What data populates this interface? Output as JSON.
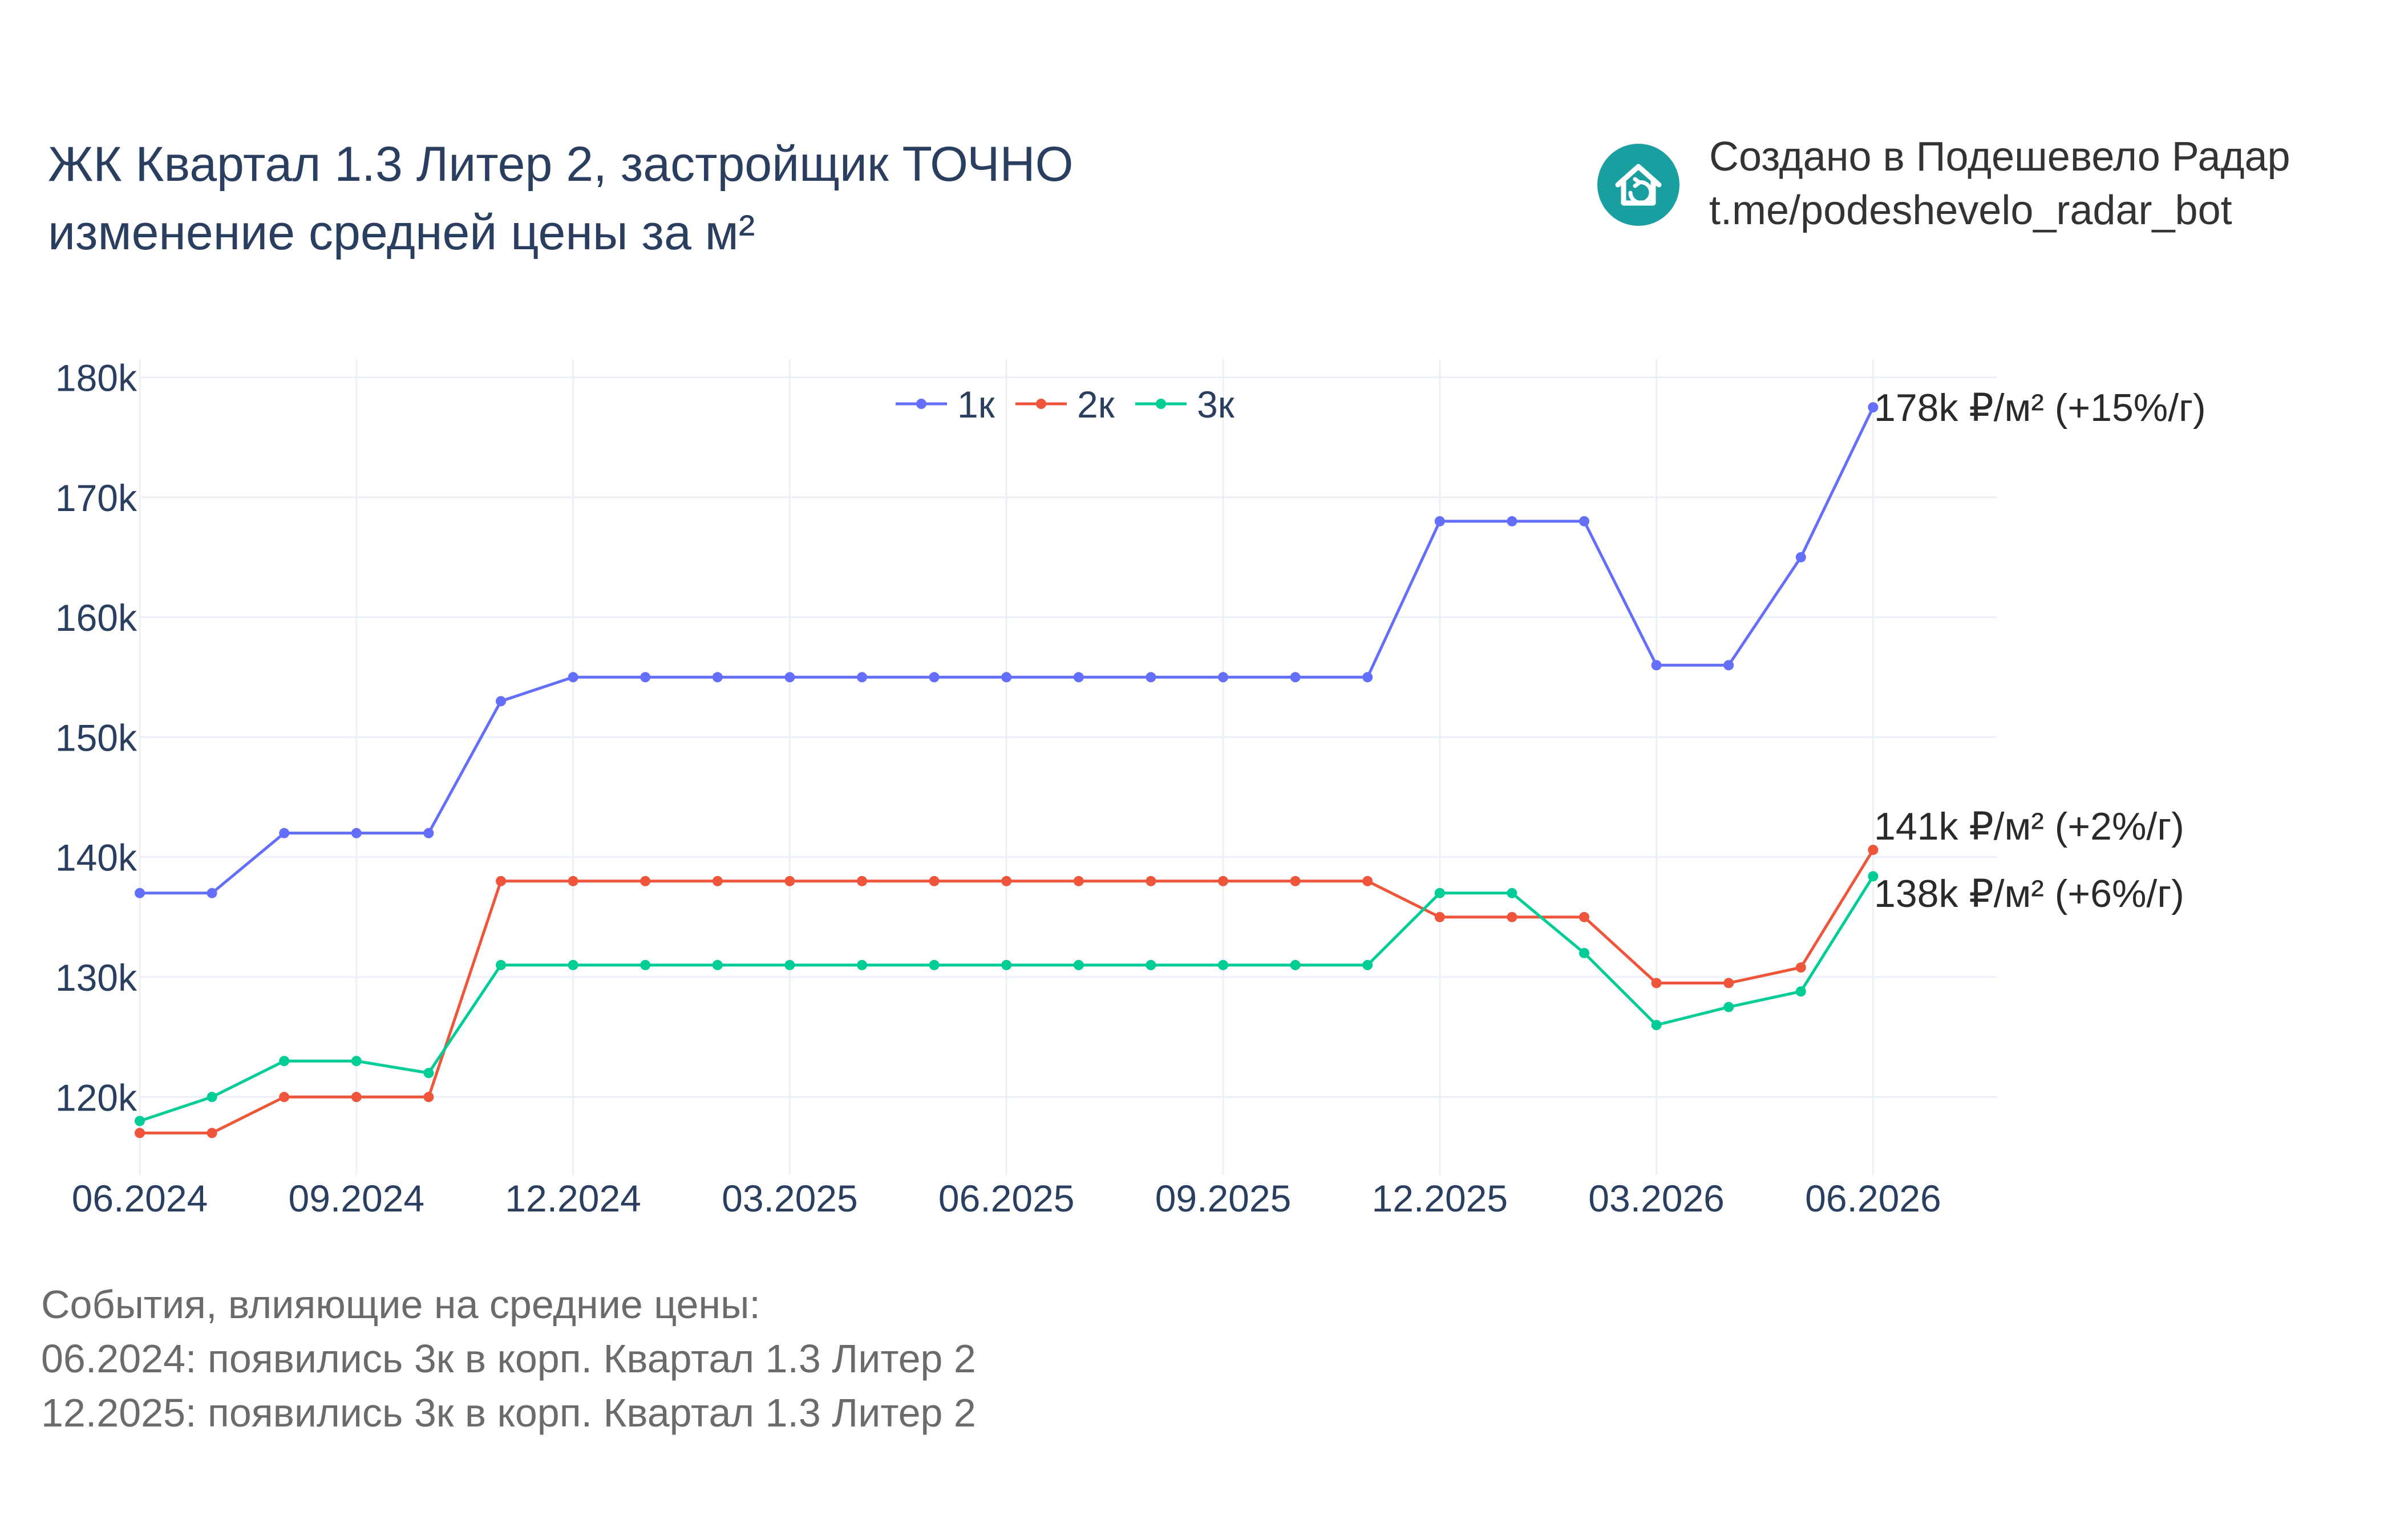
{
  "header": {
    "title_line1": "ЖК Квартал 1.3 Литер 2, застройщик ТОЧНО",
    "title_line2": "изменение средней цены за м²"
  },
  "brand": {
    "line1": "Создано в Подешевело Радар",
    "line2": "t.me/podeshevelo_radar_bot",
    "logo_color": "#1a9fa0"
  },
  "events": {
    "heading": "События, влияющие на средние цены:",
    "items": [
      "06.2024: появились 3к в корп. Квартал 1.3 Литер 2",
      "12.2025: появились 3к в корп. Квартал 1.3 Литер 2"
    ]
  },
  "chart_data": {
    "type": "line",
    "x": [
      "2024-06",
      "2024-07",
      "2024-08",
      "2024-09",
      "2024-10",
      "2024-11",
      "2024-12",
      "2025-01",
      "2025-02",
      "2025-03",
      "2025-04",
      "2025-05",
      "2025-06",
      "2025-07",
      "2025-08",
      "2025-09",
      "2025-10",
      "2025-11",
      "2025-12",
      "2026-01",
      "2026-02",
      "2026-03",
      "2026-04",
      "2026-05",
      "2026-06"
    ],
    "x_tick_labels": [
      "06.2024",
      "09.2024",
      "12.2024",
      "03.2025",
      "06.2025",
      "09.2025",
      "12.2025",
      "03.2026",
      "06.2026"
    ],
    "y_tick_labels": [
      "120k",
      "130k",
      "140k",
      "150k",
      "160k",
      "170k",
      "180k"
    ],
    "y_ticks": [
      120000,
      130000,
      140000,
      150000,
      160000,
      170000,
      180000
    ],
    "ylim": [
      113500,
      181500
    ],
    "grid": true,
    "legend_position": "top-center",
    "series": [
      {
        "name": "1к",
        "color": "#636efa",
        "values": [
          137000,
          137000,
          142000,
          142000,
          142000,
          153000,
          155000,
          155000,
          155000,
          155000,
          155000,
          155000,
          155000,
          155000,
          155000,
          155000,
          155000,
          155000,
          168000,
          168000,
          168000,
          156000,
          156000,
          165000,
          177500
        ],
        "end_label": "178k ₽/м² (+15%/г)"
      },
      {
        "name": "2к",
        "color": "#ef553b",
        "values": [
          117000,
          117000,
          120000,
          120000,
          120000,
          138000,
          138000,
          138000,
          138000,
          138000,
          138000,
          138000,
          138000,
          138000,
          138000,
          138000,
          138000,
          138000,
          135000,
          135000,
          135000,
          129500,
          129500,
          130800,
          140600
        ],
        "end_label": "141k ₽/м² (+2%/г)"
      },
      {
        "name": "3к",
        "color": "#00cc96",
        "values": [
          118000,
          120000,
          123000,
          123000,
          122000,
          131000,
          131000,
          131000,
          131000,
          131000,
          131000,
          131000,
          131000,
          131000,
          131000,
          131000,
          131000,
          131000,
          137000,
          137000,
          132000,
          126000,
          127500,
          128800,
          138400
        ],
        "end_label": "138k ₽/м² (+6%/г)"
      }
    ]
  }
}
